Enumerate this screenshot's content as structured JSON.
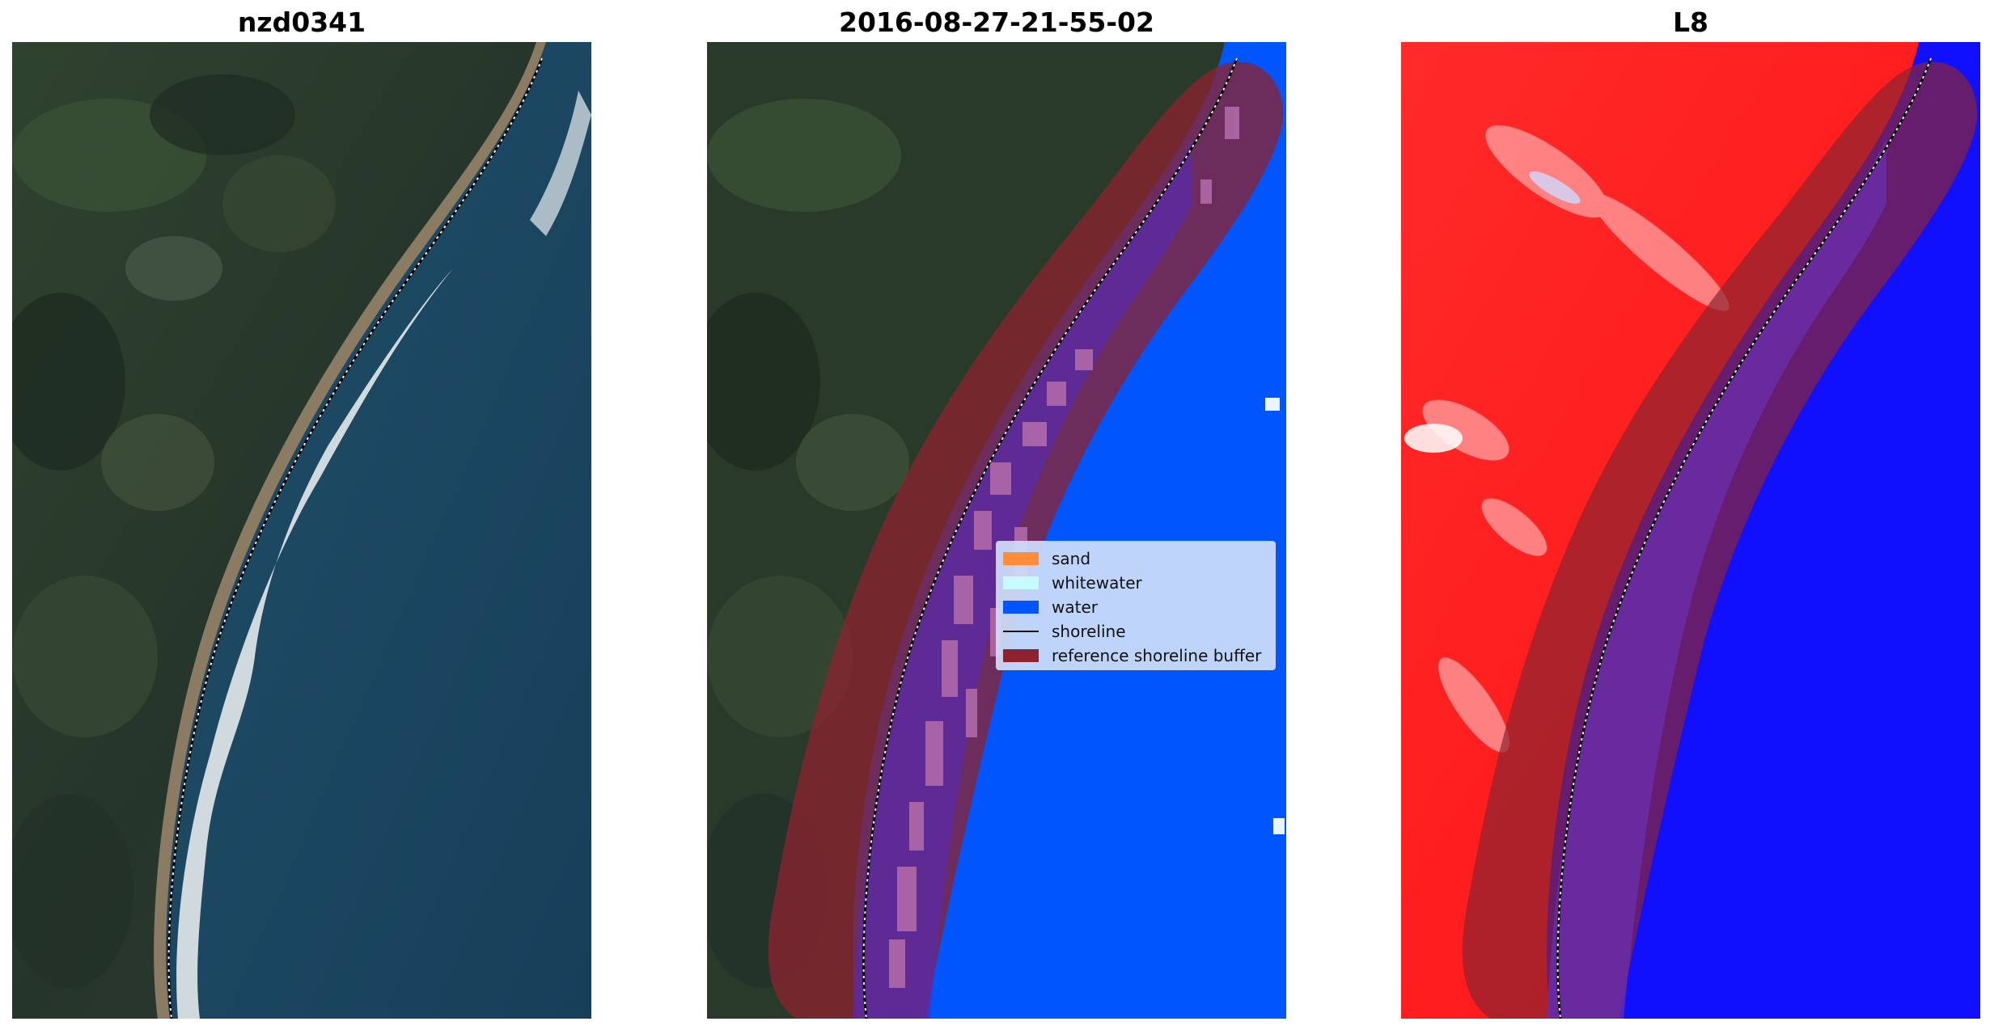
{
  "figure": {
    "panels": [
      {
        "title": "nzd0341"
      },
      {
        "title": "2016-08-27-21-55-02"
      },
      {
        "title": "L8"
      }
    ]
  },
  "legend": {
    "items": [
      {
        "label": "sand",
        "color": "#ff8c3a"
      },
      {
        "label": "whitewater",
        "color": "#c8fbff"
      },
      {
        "label": "water",
        "color": "#0055ff"
      },
      {
        "label": "shoreline",
        "color": "#000000"
      },
      {
        "label": "reference shoreline buffer",
        "color": "#8b2330"
      }
    ]
  },
  "colors": {
    "land": "#2a3a2a",
    "ocean": "#1a4a66",
    "surf": "#f2f6f8",
    "beach": "#8a7a62",
    "classified_water": "#0055ff",
    "buffer": "#8b2330",
    "index_land": "#ff1a1a",
    "index_water": "#1010ff"
  }
}
